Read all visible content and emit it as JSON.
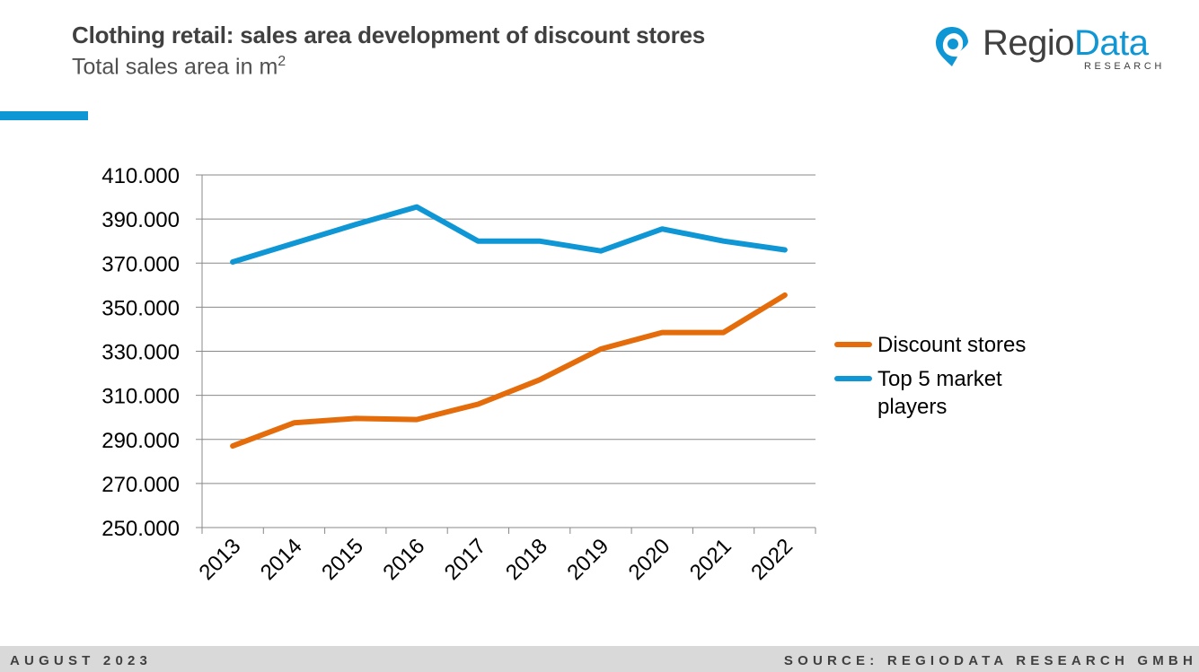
{
  "header": {
    "title": "Clothing retail: sales area development of discount stores",
    "subtitle": "Total sales area in m",
    "subtitle_superscript": "2"
  },
  "logo": {
    "name_part1": "Regio",
    "name_part2": "Data",
    "sub": "RESEARCH",
    "icon": "map-pin-icon",
    "accent_color": "#0e96d5"
  },
  "footer": {
    "date": "AUGUST 2023",
    "source": "SOURCE: REGIODATA RESEARCH GMBH"
  },
  "chart_data": {
    "type": "line",
    "x": [
      "2013",
      "2014",
      "2015",
      "2016",
      "2017",
      "2018",
      "2019",
      "2020",
      "2021",
      "2022"
    ],
    "series": [
      {
        "name": "Discount stores",
        "color": "#e46c0a",
        "values": [
          287000,
          297500,
          299500,
          299000,
          306000,
          317000,
          331000,
          338500,
          338500,
          355500
        ]
      },
      {
        "name": "Top 5 market players",
        "color": "#0e96d5",
        "values": [
          370500,
          379000,
          387500,
          395500,
          380000,
          380000,
          375500,
          385500,
          380000,
          376000
        ]
      }
    ],
    "ylim": [
      250000,
      410000
    ],
    "yticks": [
      "410.000",
      "390.000",
      "370.000",
      "350.000",
      "330.000",
      "310.000",
      "290.000",
      "270.000",
      "250.000"
    ],
    "ytick_values": [
      410000,
      390000,
      370000,
      350000,
      330000,
      310000,
      290000,
      270000,
      250000
    ],
    "grid": true,
    "legend_position": "right"
  }
}
